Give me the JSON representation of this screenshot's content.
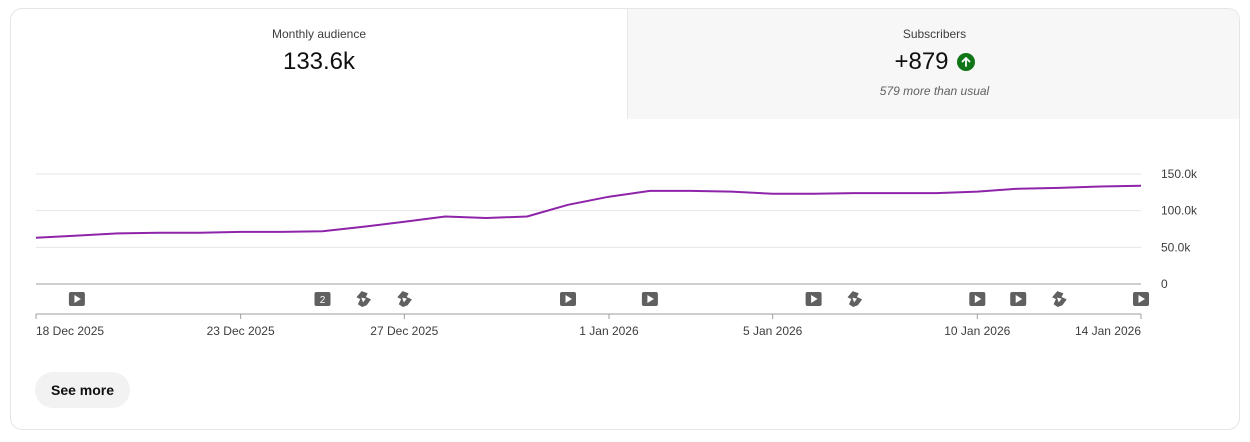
{
  "metrics": {
    "monthly_audience": {
      "label": "Monthly audience",
      "value": "133.6k"
    },
    "subscribers": {
      "label": "Subscribers",
      "value": "+879",
      "trend_icon": "arrow-up-icon",
      "note": "579 more than usual"
    }
  },
  "chart_data": {
    "type": "line",
    "series": [
      {
        "color": "#8e24aa",
        "values": [
          63000,
          66000,
          69000,
          70000,
          70000,
          71000,
          71000,
          72000,
          78000,
          85000,
          92000,
          90000,
          92000,
          108000,
          119000,
          127000,
          127000,
          126000,
          123000,
          123000,
          124000,
          124000,
          124000,
          126000,
          130000,
          131000,
          133000,
          134000
        ]
      }
    ],
    "y_ticks": [
      "150.0k",
      "100.0k",
      "50.0k",
      "0"
    ],
    "ylim": [
      0,
      150000
    ],
    "x_tick_labels": [
      {
        "label": "18 Dec 2025",
        "index": 0
      },
      {
        "label": "23 Dec 2025",
        "index": 5
      },
      {
        "label": "27 Dec 2025",
        "index": 9
      },
      {
        "label": "1 Jan 2026",
        "index": 14
      },
      {
        "label": "5 Jan 2026",
        "index": 18
      },
      {
        "label": "10 Jan 2026",
        "index": 23
      },
      {
        "label": "14 Jan 2026",
        "index": 27
      }
    ],
    "upload_markers": [
      {
        "index": 1,
        "type": "video"
      },
      {
        "index": 7,
        "type": "multiple",
        "count": "2"
      },
      {
        "index": 8,
        "type": "short"
      },
      {
        "index": 9,
        "type": "short"
      },
      {
        "index": 13,
        "type": "video"
      },
      {
        "index": 15,
        "type": "video"
      },
      {
        "index": 19,
        "type": "video"
      },
      {
        "index": 20,
        "type": "short"
      },
      {
        "index": 23,
        "type": "video"
      },
      {
        "index": 24,
        "type": "video"
      },
      {
        "index": 25,
        "type": "short"
      },
      {
        "index": 27,
        "type": "video"
      }
    ],
    "grid": true
  },
  "actions": {
    "see_more": "See more"
  }
}
